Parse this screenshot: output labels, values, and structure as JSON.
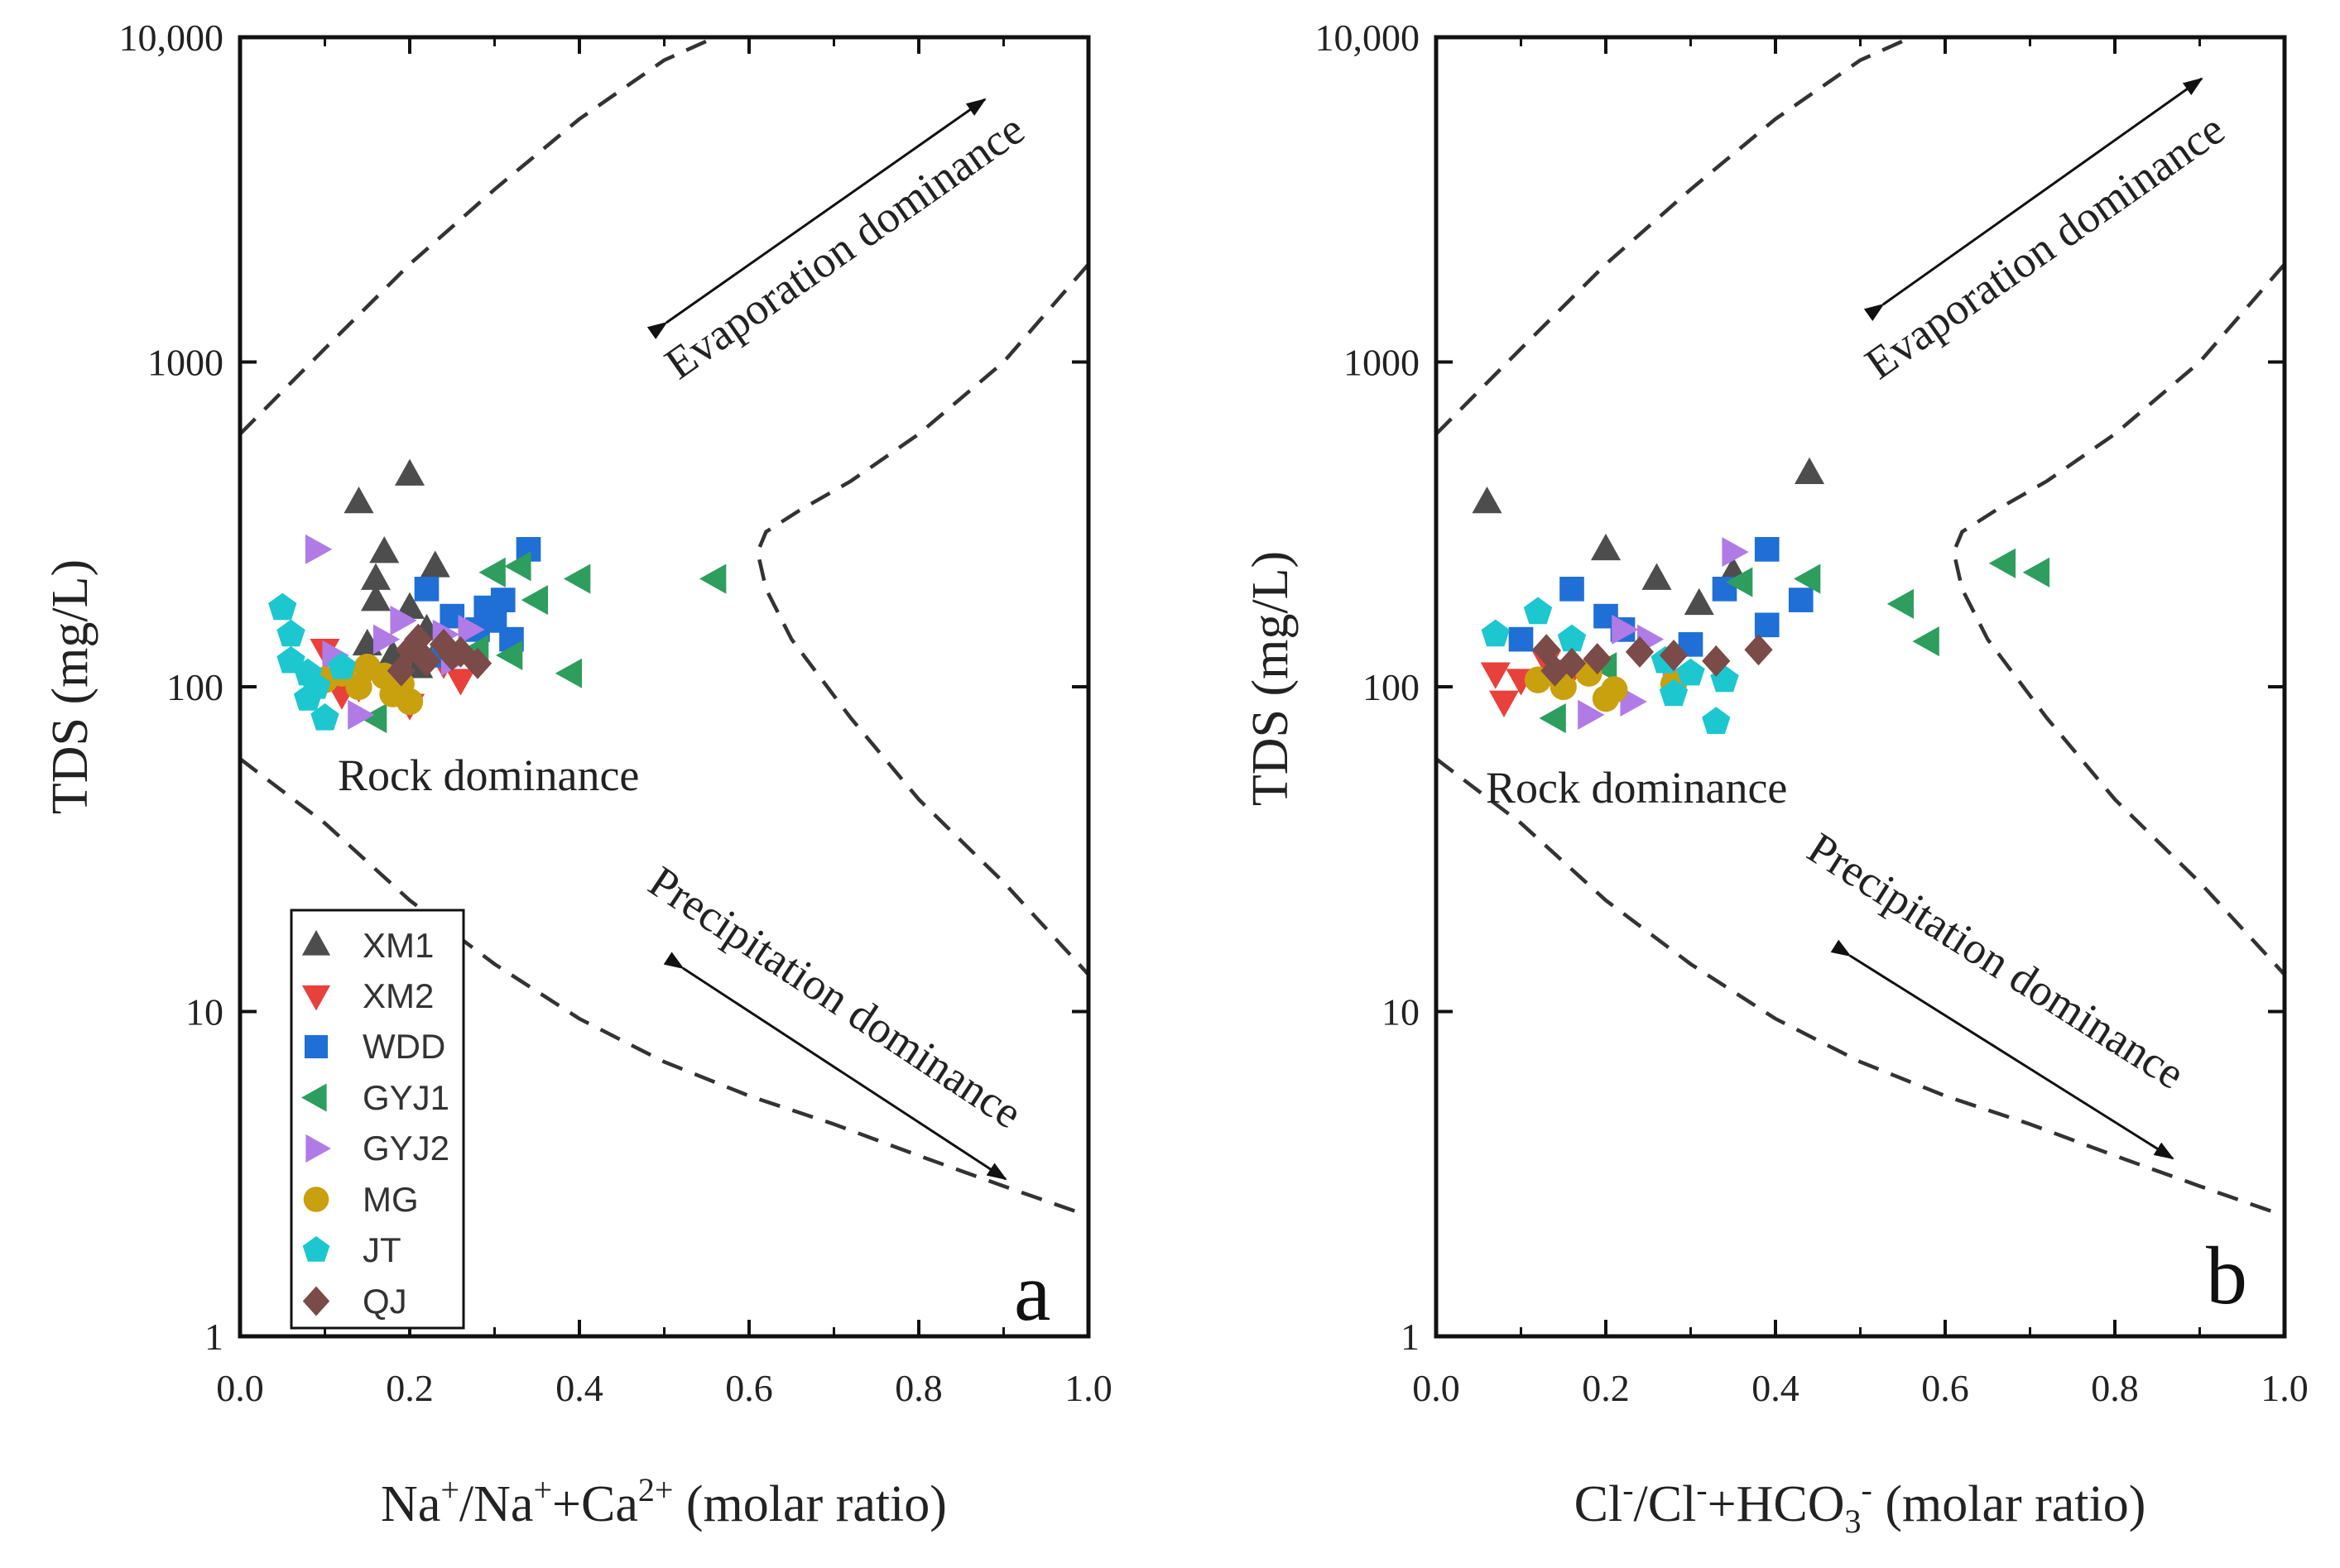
{
  "colors": {
    "XM1": "#4d4d4d",
    "XM2": "#e8413c",
    "WDD": "#1f6fd6",
    "GYJ1": "#2e9e5e",
    "GYJ2": "#b07be6",
    "MG": "#c9a00e",
    "JT": "#1cc7cf",
    "QJ": "#7a4b48"
  },
  "legend": {
    "entries": [
      {
        "name": "XM1",
        "marker": "triangle-up"
      },
      {
        "name": "XM2",
        "marker": "triangle-down"
      },
      {
        "name": "WDD",
        "marker": "square"
      },
      {
        "name": "GYJ1",
        "marker": "triangle-left"
      },
      {
        "name": "GYJ2",
        "marker": "triangle-right"
      },
      {
        "name": "MG",
        "marker": "circle"
      },
      {
        "name": "JT",
        "marker": "pentagon"
      },
      {
        "name": "QJ",
        "marker": "diamond"
      }
    ]
  },
  "chart_data": [
    {
      "type": "scatter",
      "panel_label": "a",
      "title": "",
      "ylabel": "TDS (mg/L)",
      "xlabel": {
        "base": "Na",
        "sup1": "+",
        "mid": "/Na",
        "sup2": "+",
        "mid2": "+Ca",
        "sup3": "2+",
        "tail": " (molar ratio)"
      },
      "xlim": [
        0,
        1
      ],
      "ylim": [
        1,
        10000
      ],
      "yscale": "log",
      "x_ticks": [
        "0.0",
        "0.2",
        "0.4",
        "0.6",
        "0.8",
        "1.0"
      ],
      "y_ticks": [
        "1",
        "10",
        "100",
        "1000",
        "10,000"
      ],
      "annotations": [
        "Evaporation dominance",
        "Rock dominance",
        "Precipitation dominance"
      ],
      "series": [
        {
          "name": "XM1",
          "points": [
            [
              0.14,
              370
            ],
            [
              0.2,
              450
            ],
            [
              0.17,
              260
            ],
            [
              0.16,
              215
            ],
            [
              0.23,
              235
            ],
            [
              0.2,
              175
            ],
            [
              0.16,
              185
            ],
            [
              0.22,
              150
            ],
            [
              0.15,
              135
            ],
            [
              0.18,
              125
            ],
            [
              0.21,
              115
            ],
            [
              0.24,
              140
            ]
          ]
        },
        {
          "name": "XM2",
          "points": [
            [
              0.1,
              130
            ],
            [
              0.14,
              100
            ],
            [
              0.2,
              88
            ],
            [
              0.24,
              118
            ],
            [
              0.26,
              105
            ],
            [
              0.12,
              95
            ]
          ]
        },
        {
          "name": "WDD",
          "points": [
            [
              0.22,
              200
            ],
            [
              0.34,
              265
            ],
            [
              0.29,
              175
            ],
            [
              0.31,
              185
            ],
            [
              0.25,
              165
            ],
            [
              0.32,
              140
            ],
            [
              0.24,
              125
            ],
            [
              0.28,
              150
            ],
            [
              0.3,
              160
            ]
          ]
        },
        {
          "name": "GYJ1",
          "points": [
            [
              0.33,
              235
            ],
            [
              0.4,
              215
            ],
            [
              0.56,
              215
            ],
            [
              0.35,
              185
            ],
            [
              0.32,
              125
            ],
            [
              0.39,
              110
            ],
            [
              0.28,
              130
            ],
            [
              0.16,
              80
            ],
            [
              0.3,
              225
            ]
          ]
        },
        {
          "name": "GYJ2",
          "points": [
            [
              0.09,
              265
            ],
            [
              0.11,
              125
            ],
            [
              0.24,
              145
            ],
            [
              0.19,
              160
            ],
            [
              0.27,
              150
            ],
            [
              0.17,
              140
            ],
            [
              0.25,
              120
            ],
            [
              0.14,
              82
            ]
          ]
        },
        {
          "name": "MG",
          "points": [
            [
              0.12,
              110
            ],
            [
              0.14,
              100
            ],
            [
              0.17,
              108
            ],
            [
              0.18,
              95
            ],
            [
              0.2,
              90
            ],
            [
              0.15,
              115
            ],
            [
              0.19,
              102
            ],
            [
              0.1,
              105
            ]
          ]
        },
        {
          "name": "JT",
          "points": [
            [
              0.05,
              175
            ],
            [
              0.06,
              145
            ],
            [
              0.08,
              110
            ],
            [
              0.09,
              100
            ],
            [
              0.1,
              80
            ],
            [
              0.08,
              92
            ],
            [
              0.06,
              120
            ],
            [
              0.12,
              115
            ]
          ]
        },
        {
          "name": "QJ",
          "points": [
            [
              0.2,
              130
            ],
            [
              0.22,
              120
            ],
            [
              0.25,
              125
            ],
            [
              0.28,
              118
            ],
            [
              0.19,
              112
            ],
            [
              0.21,
              140
            ],
            [
              0.24,
              135
            ],
            [
              0.26,
              128
            ]
          ]
        }
      ]
    },
    {
      "type": "scatter",
      "panel_label": "b",
      "title": "",
      "ylabel": "TDS (mg/L)",
      "xlabel": {
        "base": "Cl",
        "sup1": "-",
        "mid": "/Cl",
        "sup2": "-",
        "mid2": "+HCO",
        "sub3": "3",
        "sup3": "-",
        "tail": " (molar ratio)"
      },
      "xlim": [
        0,
        1
      ],
      "ylim": [
        1,
        10000
      ],
      "yscale": "log",
      "x_ticks": [
        "0.0",
        "0.2",
        "0.4",
        "0.6",
        "0.8",
        "1.0"
      ],
      "y_ticks": [
        "1",
        "10",
        "100",
        "1000",
        "10,000"
      ],
      "annotations": [
        "Evaporation dominance",
        "Rock dominance",
        "Precipitation dominance"
      ],
      "series": [
        {
          "name": "XM1",
          "points": [
            [
              0.06,
              370
            ],
            [
              0.44,
              455
            ],
            [
              0.2,
              265
            ],
            [
              0.26,
              215
            ],
            [
              0.31,
              180
            ],
            [
              0.35,
              225
            ]
          ]
        },
        {
          "name": "XM2",
          "points": [
            [
              0.07,
              110
            ],
            [
              0.08,
              90
            ],
            [
              0.1,
              105
            ],
            [
              0.13,
              120
            ],
            [
              0.16,
              112
            ]
          ]
        },
        {
          "name": "WDD",
          "points": [
            [
              0.16,
              200
            ],
            [
              0.2,
              165
            ],
            [
              0.22,
              150
            ],
            [
              0.34,
              200
            ],
            [
              0.39,
              265
            ],
            [
              0.43,
              185
            ],
            [
              0.39,
              155
            ],
            [
              0.3,
              135
            ],
            [
              0.1,
              140
            ]
          ]
        },
        {
          "name": "GYJ1",
          "points": [
            [
              0.55,
              180
            ],
            [
              0.58,
              138
            ],
            [
              0.67,
              240
            ],
            [
              0.71,
              225
            ],
            [
              0.44,
              215
            ],
            [
              0.36,
              210
            ],
            [
              0.2,
              115
            ],
            [
              0.14,
              80
            ]
          ]
        },
        {
          "name": "GYJ2",
          "points": [
            [
              0.35,
              260
            ],
            [
              0.22,
              150
            ],
            [
              0.25,
              140
            ],
            [
              0.18,
              82
            ],
            [
              0.23,
              90
            ],
            [
              0.28,
              108
            ]
          ]
        },
        {
          "name": "MG",
          "points": [
            [
              0.15,
              100
            ],
            [
              0.18,
              110
            ],
            [
              0.2,
              92
            ],
            [
              0.21,
              98
            ],
            [
              0.12,
              105
            ],
            [
              0.28,
              102
            ]
          ]
        },
        {
          "name": "JT",
          "points": [
            [
              0.07,
              145
            ],
            [
              0.12,
              170
            ],
            [
              0.16,
              140
            ],
            [
              0.28,
              95
            ],
            [
              0.3,
              110
            ],
            [
              0.34,
              105
            ],
            [
              0.33,
              78
            ],
            [
              0.27,
              120
            ]
          ]
        },
        {
          "name": "QJ",
          "points": [
            [
              0.13,
              130
            ],
            [
              0.16,
              118
            ],
            [
              0.19,
              122
            ],
            [
              0.24,
              128
            ],
            [
              0.28,
              125
            ],
            [
              0.33,
              120
            ],
            [
              0.38,
              130
            ],
            [
              0.14,
              112
            ]
          ]
        }
      ]
    }
  ]
}
